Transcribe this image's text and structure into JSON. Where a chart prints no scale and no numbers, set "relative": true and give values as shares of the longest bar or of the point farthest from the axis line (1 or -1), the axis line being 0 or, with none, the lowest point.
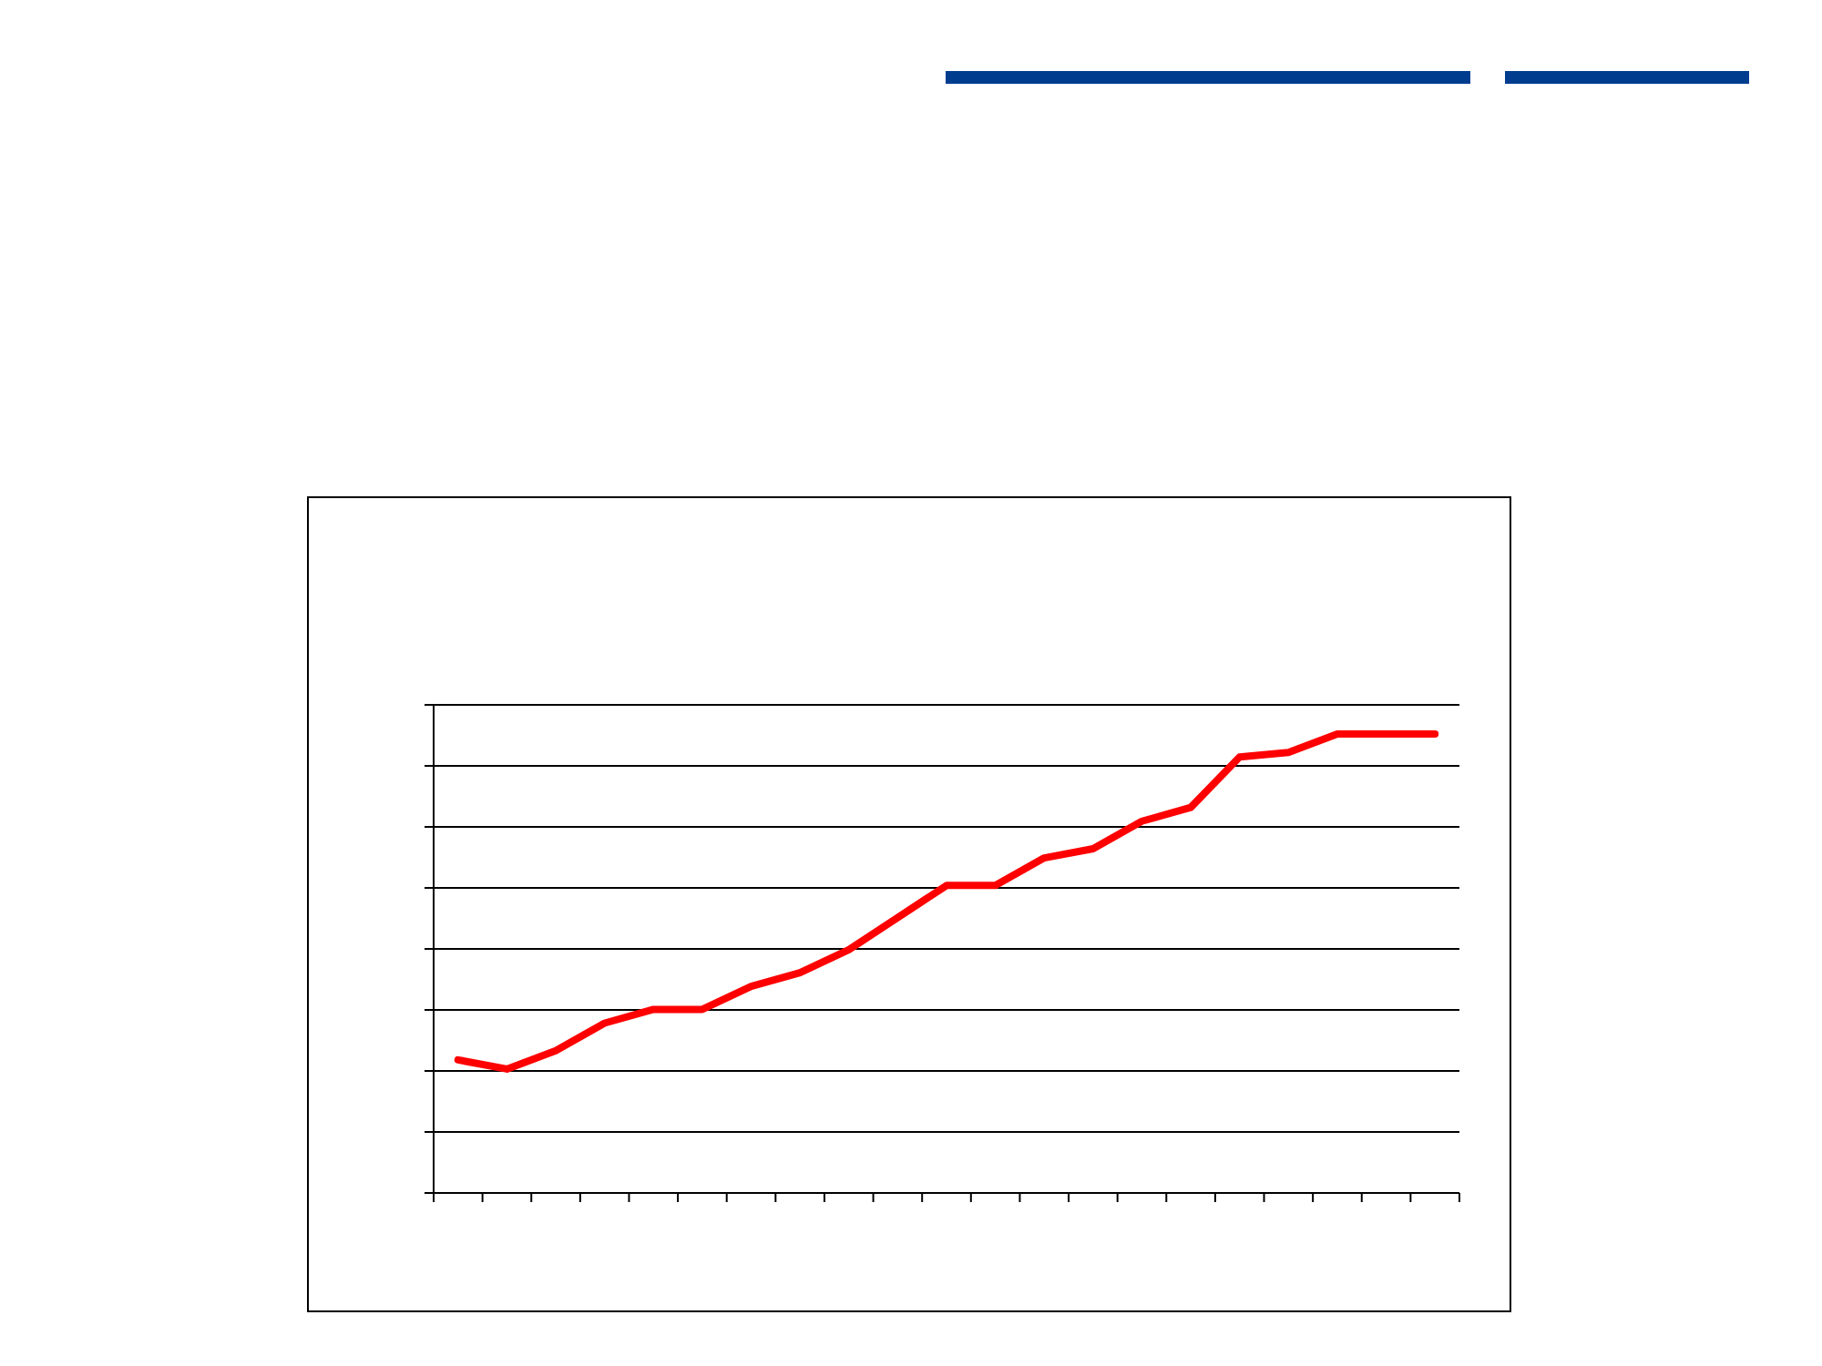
{
  "chart_data": {
    "type": "line",
    "relative": true,
    "grid": "y",
    "line_style": "solid",
    "categories": [
      null,
      null,
      null,
      null,
      null,
      null,
      null,
      null,
      null,
      null,
      null,
      null,
      null,
      null,
      null,
      null,
      null,
      null,
      null,
      null,
      null
    ],
    "series": [
      {
        "color": "#ff0000",
        "values": [
          0.29,
          0.27,
          0.31,
          0.37,
          0.4,
          0.4,
          0.45,
          0.48,
          0.53,
          0.6,
          0.67,
          0.67,
          0.73,
          0.75,
          0.81,
          0.84,
          0.95,
          0.96,
          1,
          1,
          1
        ]
      }
    ]
  }
}
